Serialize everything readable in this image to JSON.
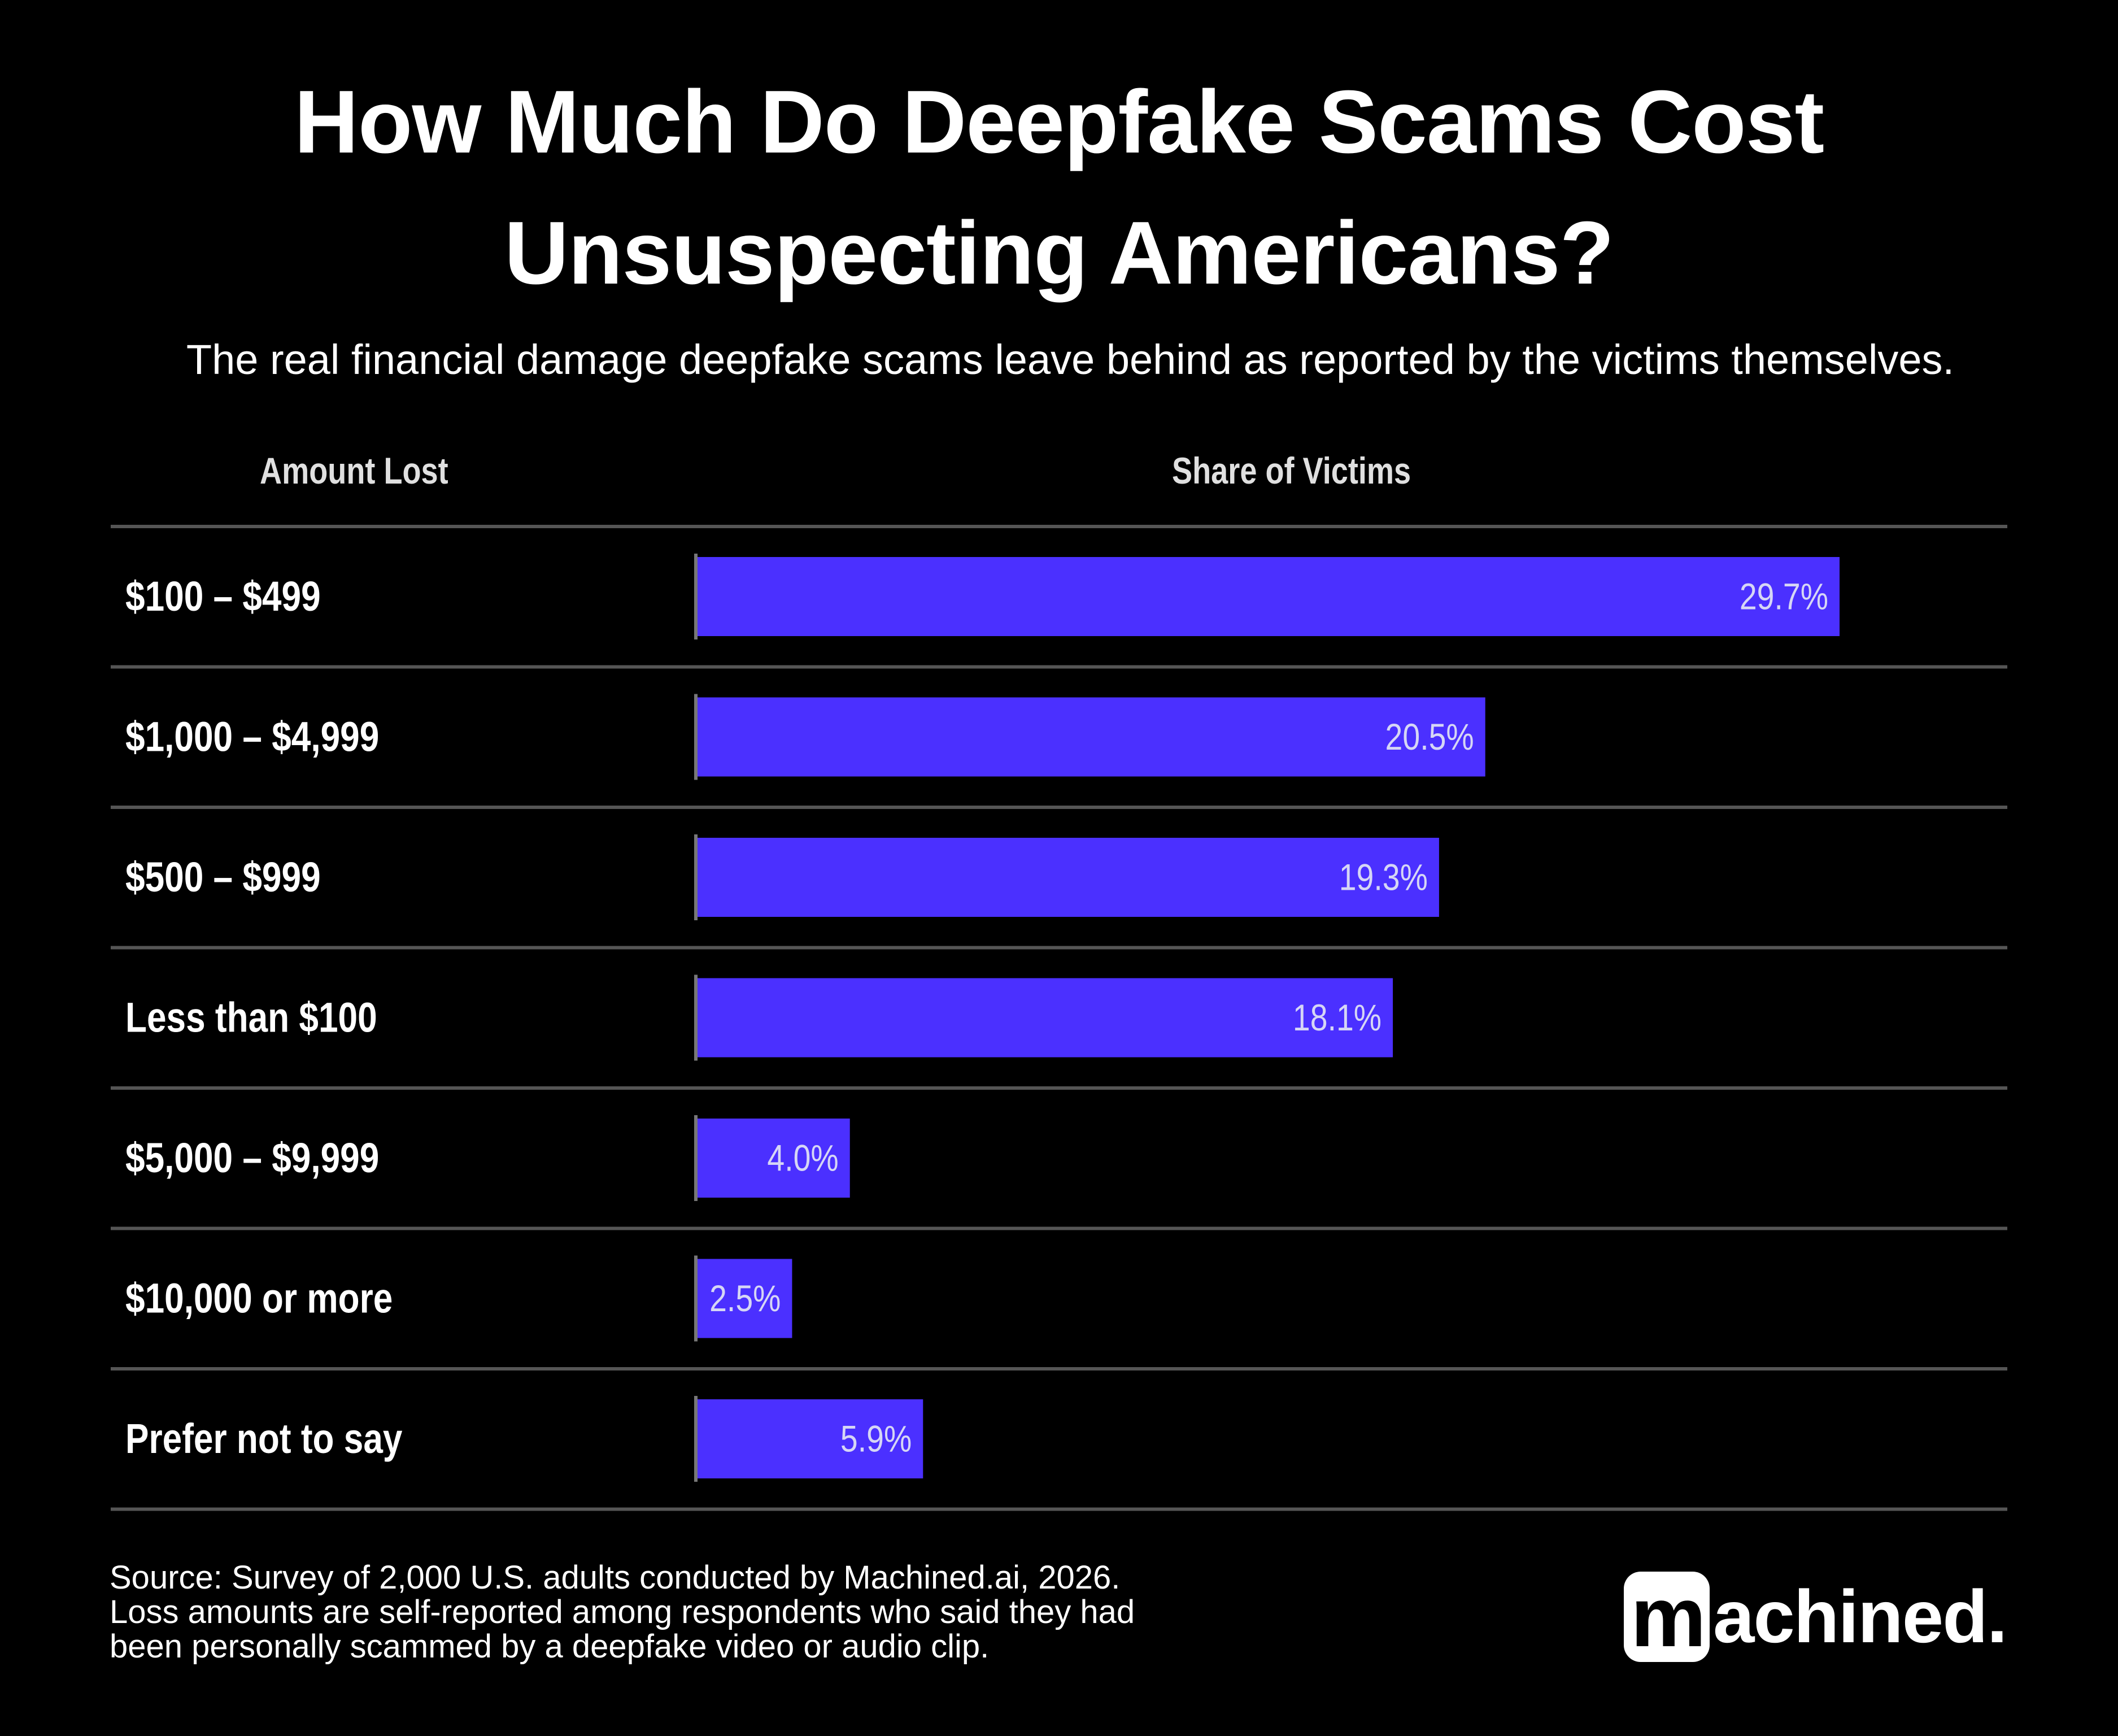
{
  "header": {
    "title_line1": "How Much Do Deepfake Scams Cost",
    "title_line2": "Unsuspecting Americans?",
    "subtitle": "The real financial damage deepfake scams leave behind as reported by the victims themselves."
  },
  "columns": {
    "amount": "Amount Lost",
    "share": "Share of Victims"
  },
  "chart_data": {
    "type": "bar",
    "orientation": "horizontal",
    "title": "How Much Do Deepfake Scams Cost Unsuspecting Americans?",
    "categories": [
      "$100 – $499",
      "$1,000 – $4,999",
      "$500 – $999",
      "Less than $100",
      "$5,000 – $9,999",
      "$10,000 or more",
      "Prefer not to say"
    ],
    "values": [
      29.7,
      20.5,
      19.3,
      18.1,
      4.0,
      2.5,
      5.9
    ],
    "value_labels": [
      "29.7%",
      "20.5%",
      "19.3%",
      "18.1%",
      "4.0%",
      "2.5%",
      "5.9%"
    ],
    "xlabel": "Share of Victims",
    "ylabel": "Amount Lost",
    "bar_color": "#4b30ff",
    "divider_color": "#555555"
  },
  "footer": {
    "source_line1": "Source: Survey of 2,000 U.S. adults conducted by Machined.ai, 2026.",
    "source_line2": "Loss amounts are self-reported among respondents who said they had",
    "source_line3": "been personally scammed by a deepfake video or audio clip.",
    "logo_mark": "m",
    "logo_text": "achined."
  }
}
